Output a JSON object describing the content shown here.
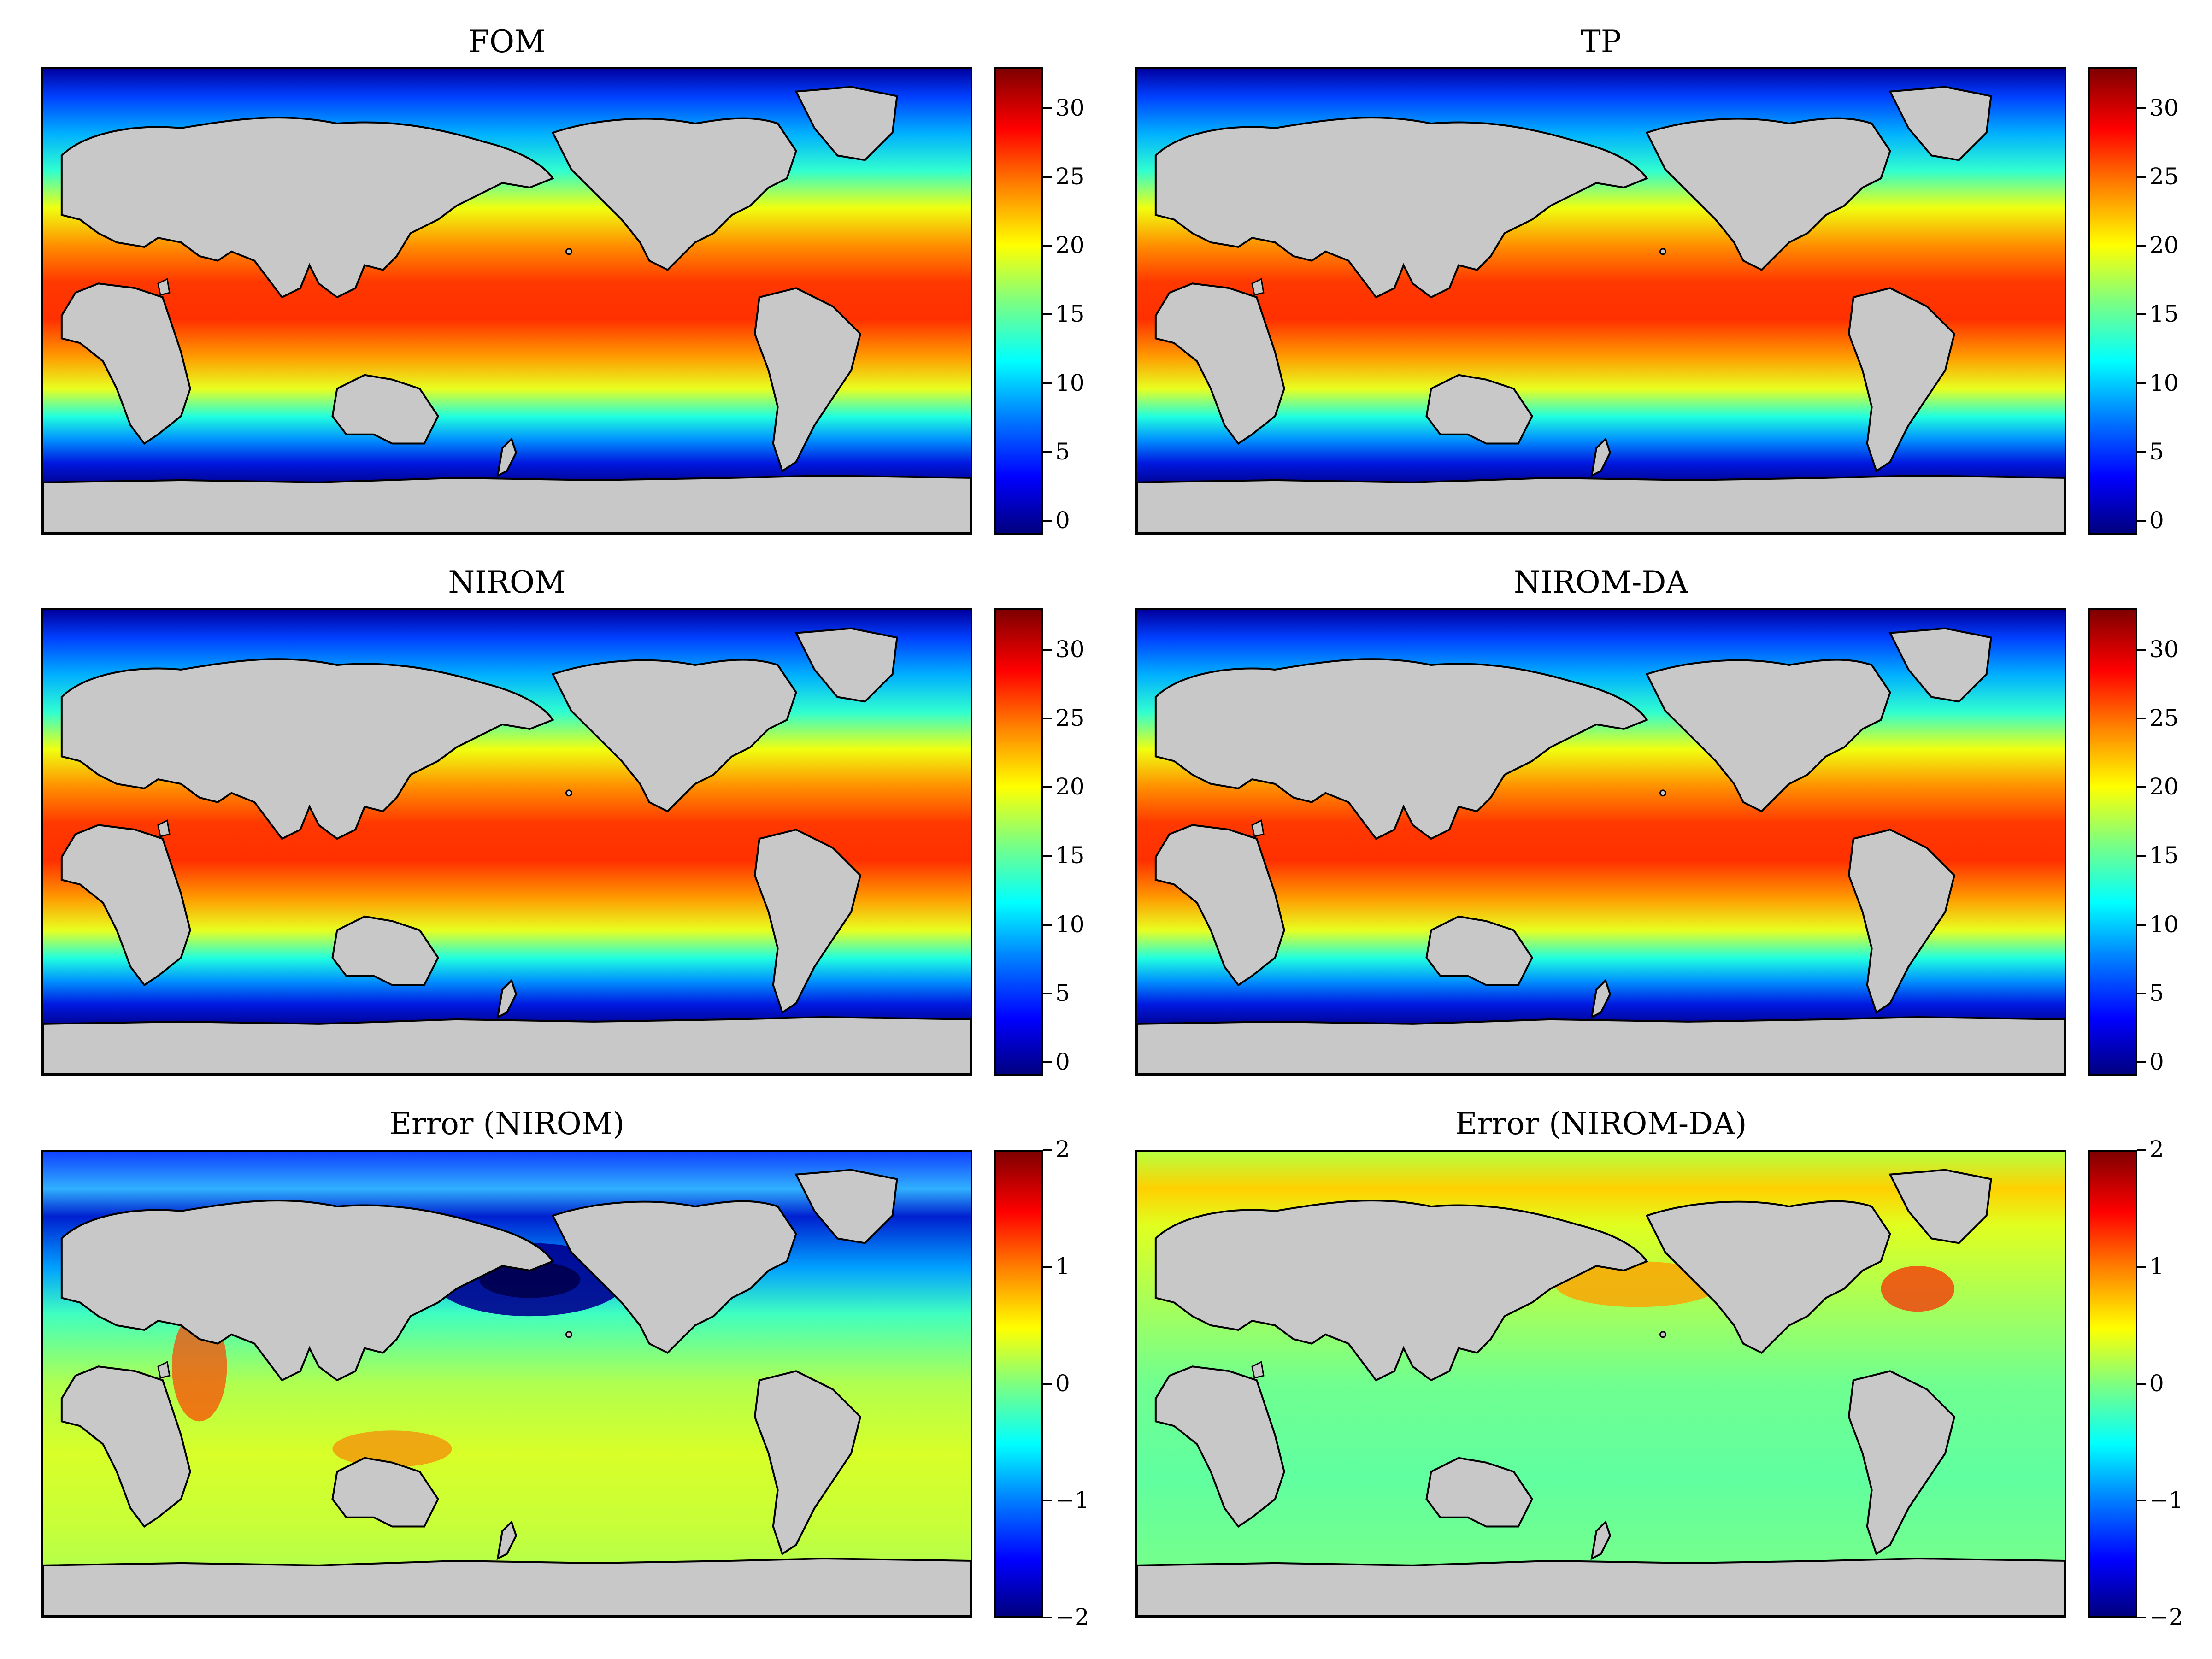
{
  "panels": [
    {
      "title": "FOM",
      "kind": "temperature"
    },
    {
      "title": "TP",
      "kind": "temperature"
    },
    {
      "title": "NIROM",
      "kind": "temperature"
    },
    {
      "title": "NIROM-DA",
      "kind": "temperature"
    },
    {
      "title": "Error (NIROM)",
      "kind": "error"
    },
    {
      "title": "Error (NIROM-DA)",
      "kind": "error"
    }
  ],
  "colorbars": {
    "temperature": {
      "ticks": [
        "0",
        "5",
        "10",
        "15",
        "20",
        "25",
        "30"
      ],
      "range": [
        -1,
        33
      ]
    },
    "error": {
      "ticks": [
        "−2",
        "−1",
        "0",
        "1",
        "2"
      ],
      "range": [
        -2,
        2
      ]
    }
  },
  "colors": {
    "land": "#c8c8c8",
    "coast": "#000000",
    "colormap": "jet"
  }
}
